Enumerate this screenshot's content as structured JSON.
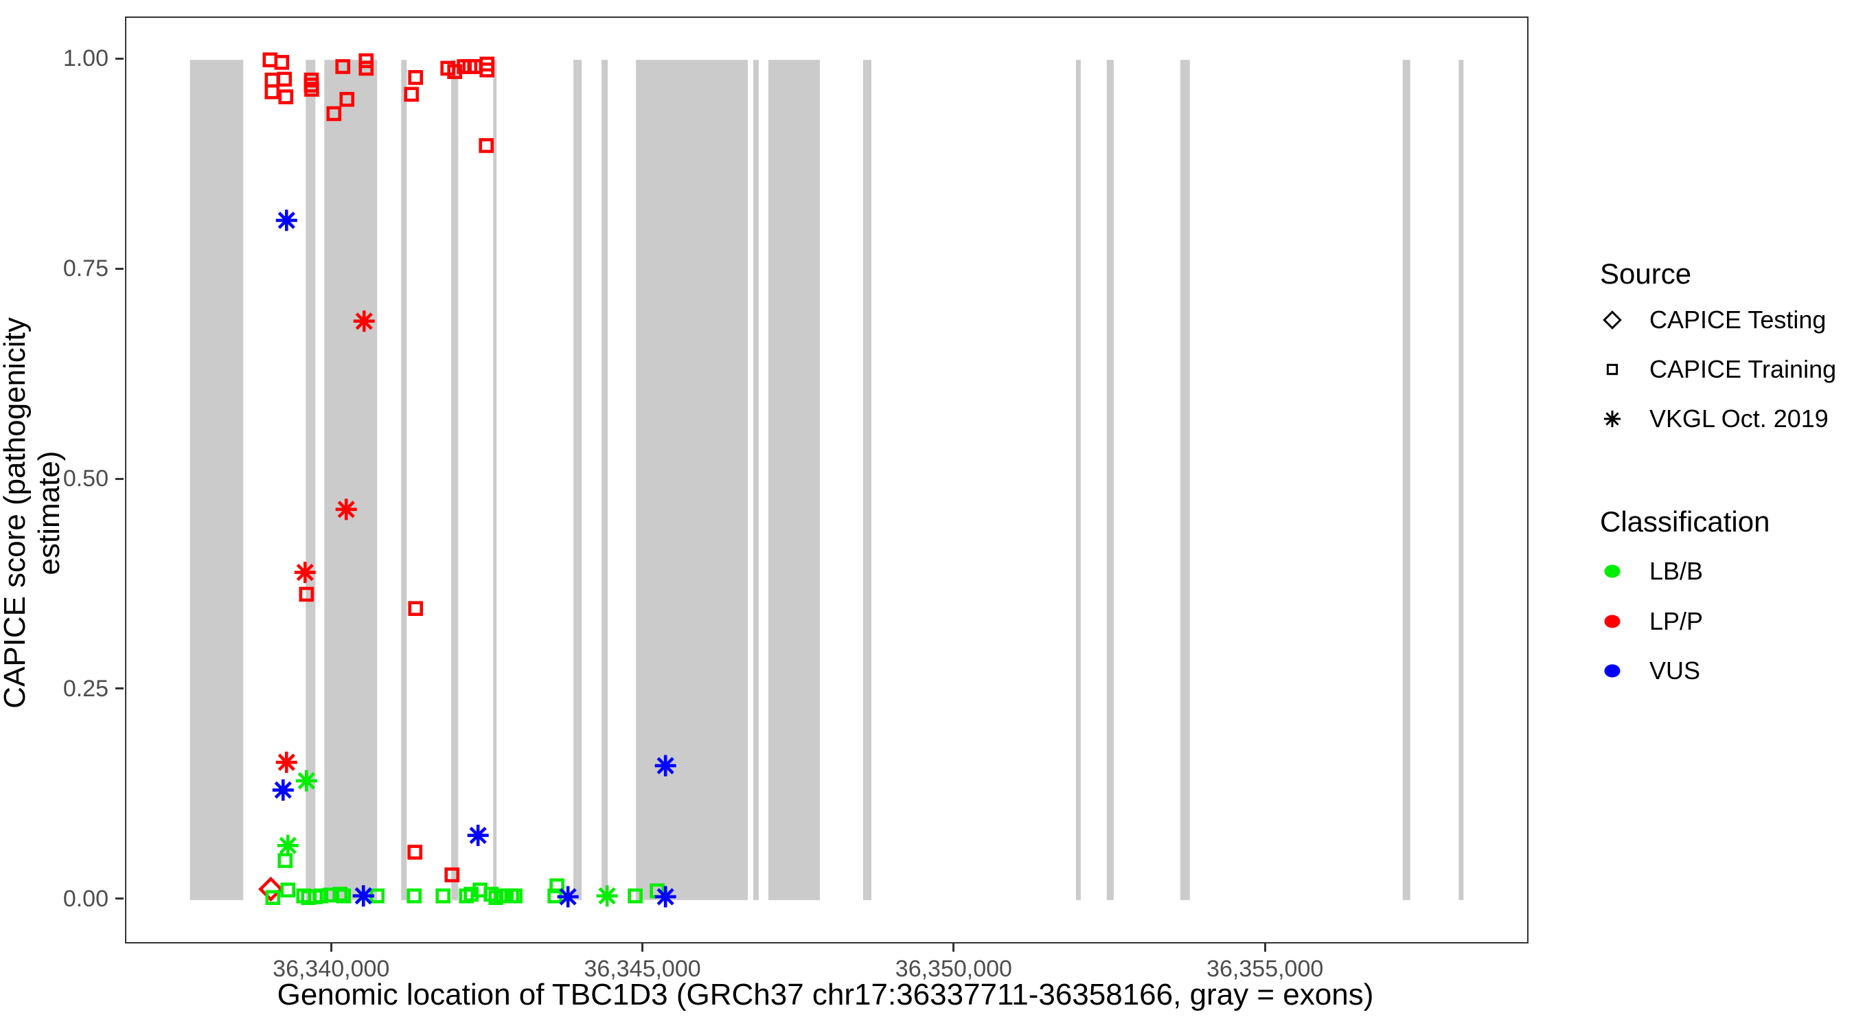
{
  "colors": {
    "exon": "#CBCBCB",
    "panel_border": "#333333",
    "tick_text": "#4d4d4d",
    "lbb": "#00EE00",
    "lpp": "#FF0000",
    "vus": "#0000FF",
    "legend_glyph": "#000000"
  },
  "legend": {
    "source_title": "Source",
    "source_items": [
      {
        "label": "CAPICE Testing",
        "marker": "diamond"
      },
      {
        "label": "CAPICE Training",
        "marker": "square"
      },
      {
        "label": "VKGL Oct. 2019",
        "marker": "asterisk"
      }
    ],
    "classification_title": "Classification",
    "classification_items": [
      {
        "label": "LB/B",
        "color_key": "lbb"
      },
      {
        "label": "LP/P",
        "color_key": "lpp"
      },
      {
        "label": "VUS",
        "color_key": "vus"
      }
    ]
  },
  "chart_data": {
    "type": "scatter",
    "xlabel": "Genomic location of TBC1D3 (GRCh37 chr17:36337711-36358166, gray = exons)",
    "ylabel": "CAPICE score (pathogenicity estimate)",
    "gene": {
      "name": "TBC1D3",
      "assembly": "GRCh37",
      "chromosome": "chr17",
      "start": 36337711,
      "end": 36358166
    },
    "xlim": [
      36336688,
      36359189
    ],
    "ylim": [
      -0.05,
      1.05
    ],
    "x_ticks": [
      {
        "value": 36340000,
        "label": "36,340,000"
      },
      {
        "value": 36345000,
        "label": "36,345,000"
      },
      {
        "value": 36350000,
        "label": "36,350,000"
      },
      {
        "value": 36355000,
        "label": "36,355,000"
      }
    ],
    "y_ticks": [
      {
        "value": 0.0,
        "label": "0.00"
      },
      {
        "value": 0.25,
        "label": "0.25"
      },
      {
        "value": 0.5,
        "label": "0.50"
      },
      {
        "value": 0.75,
        "label": "0.75"
      },
      {
        "value": 1.0,
        "label": "1.00"
      }
    ],
    "exons_note": "gray = exons",
    "exons": [
      [
        36337711,
        36338567
      ],
      [
        36339570,
        36339724
      ],
      [
        36339868,
        36340717
      ],
      [
        36341103,
        36341191
      ],
      [
        36341907,
        36342018
      ],
      [
        36342580,
        36342635
      ],
      [
        36343870,
        36344002
      ],
      [
        36344322,
        36344421
      ],
      [
        36344873,
        36346670
      ],
      [
        36346758,
        36346846
      ],
      [
        36347001,
        36347828
      ],
      [
        36348522,
        36348655
      ],
      [
        36351941,
        36352018
      ],
      [
        36352437,
        36352548
      ],
      [
        36353617,
        36353771
      ],
      [
        36357189,
        36357310
      ],
      [
        36358090,
        36358166
      ]
    ],
    "series": [
      {
        "name": "CAPICE Testing / LP-P",
        "source": "CAPICE Testing",
        "classification": "LP/P",
        "marker": "diamond",
        "color_key": "lpp",
        "points": [
          [
            36339008,
            0.013
          ]
        ]
      },
      {
        "name": "CAPICE Training / LP-P",
        "source": "CAPICE Training",
        "classification": "LP/P",
        "marker": "square",
        "color_key": "lpp",
        "points": [
          [
            36338997,
            1.0
          ],
          [
            36339184,
            0.997
          ],
          [
            36339030,
            0.976
          ],
          [
            36339228,
            0.977
          ],
          [
            36339030,
            0.962
          ],
          [
            36339250,
            0.956
          ],
          [
            36339660,
            0.976
          ],
          [
            36339660,
            0.97
          ],
          [
            36339665,
            0.965
          ],
          [
            36340165,
            0.992
          ],
          [
            36340540,
            0.999
          ],
          [
            36340540,
            0.99
          ],
          [
            36340231,
            0.953
          ],
          [
            36340022,
            0.936
          ],
          [
            36341268,
            0.959
          ],
          [
            36341334,
            0.979
          ],
          [
            36341852,
            0.99
          ],
          [
            36341962,
            0.986
          ],
          [
            36342118,
            0.992
          ],
          [
            36342206,
            0.992
          ],
          [
            36342283,
            0.992
          ],
          [
            36342481,
            0.995
          ],
          [
            36342481,
            0.988
          ],
          [
            36342470,
            0.898
          ],
          [
            36339581,
            0.364
          ],
          [
            36341334,
            0.347
          ],
          [
            36341323,
            0.057
          ],
          [
            36341919,
            0.03
          ]
        ]
      },
      {
        "name": "CAPICE Training / LB-B",
        "source": "CAPICE Training",
        "classification": "LB/B",
        "marker": "square",
        "color_key": "lbb",
        "points": [
          [
            36339041,
            0.003
          ],
          [
            36339239,
            0.047
          ],
          [
            36339283,
            0.012
          ],
          [
            36339537,
            0.005
          ],
          [
            36339614,
            0.003
          ],
          [
            36339724,
            0.004
          ],
          [
            36339812,
            0.005
          ],
          [
            36339967,
            0.006
          ],
          [
            36340121,
            0.007
          ],
          [
            36340176,
            0.005
          ],
          [
            36340716,
            0.005
          ],
          [
            36341312,
            0.005
          ],
          [
            36341775,
            0.005
          ],
          [
            36342150,
            0.005
          ],
          [
            36342227,
            0.007
          ],
          [
            36342370,
            0.012
          ],
          [
            36342547,
            0.007
          ],
          [
            36342624,
            0.003
          ],
          [
            36342712,
            0.005
          ],
          [
            36342789,
            0.005
          ],
          [
            36342877,
            0.005
          ],
          [
            36342932,
            0.005
          ],
          [
            36343572,
            0.005
          ],
          [
            36343605,
            0.017
          ],
          [
            36344862,
            0.005
          ],
          [
            36345215,
            0.011
          ]
        ]
      },
      {
        "name": "VKGL Oct. 2019 / LB-B",
        "source": "VKGL Oct. 2019",
        "classification": "LB/B",
        "marker": "asterisk",
        "color_key": "lbb",
        "points": [
          [
            36339283,
            0.065
          ],
          [
            36339581,
            0.142
          ],
          [
            36340496,
            0.005
          ],
          [
            36344410,
            0.005
          ]
        ]
      },
      {
        "name": "VKGL Oct. 2019 / LP-P",
        "source": "VKGL Oct. 2019",
        "classification": "LP/P",
        "marker": "asterisk",
        "color_key": "lpp",
        "points": [
          [
            36340507,
            0.689
          ],
          [
            36340220,
            0.465
          ],
          [
            36339559,
            0.39
          ],
          [
            36339261,
            0.164
          ]
        ]
      },
      {
        "name": "VKGL Oct. 2019 / VUS",
        "source": "VKGL Oct. 2019",
        "classification": "VUS",
        "marker": "asterisk",
        "color_key": "vus",
        "points": [
          [
            36339261,
            0.809
          ],
          [
            36339206,
            0.131
          ],
          [
            36342337,
            0.077
          ],
          [
            36345348,
            0.16
          ],
          [
            36345348,
            0.004
          ],
          [
            36343782,
            0.004
          ],
          [
            36340496,
            0.005
          ]
        ]
      }
    ]
  }
}
